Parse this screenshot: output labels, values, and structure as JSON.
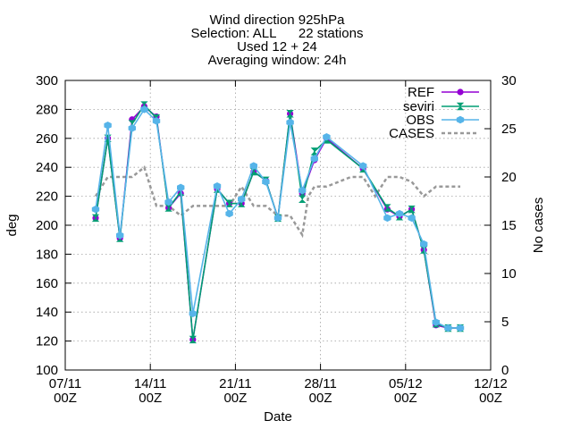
{
  "chart_data": {
    "type": "line",
    "title_lines": [
      "Wind direction 925hPa",
      "Selection: ALL      22 stations",
      "Used 12 + 24",
      "Averaging window: 24h"
    ],
    "xlabel": "Date",
    "ylabel": "deg",
    "y2label": "No cases",
    "xlim": [
      0,
      35
    ],
    "ylim": [
      100,
      300
    ],
    "y2lim": [
      0,
      30
    ],
    "x_ticks": [
      {
        "x": 0,
        "line1": "07/11",
        "line2": "00Z"
      },
      {
        "x": 7,
        "line1": "14/11",
        "line2": "00Z"
      },
      {
        "x": 14,
        "line1": "21/11",
        "line2": "00Z"
      },
      {
        "x": 21,
        "line1": "28/11",
        "line2": "00Z"
      },
      {
        "x": 28,
        "line1": "05/12",
        "line2": "00Z"
      },
      {
        "x": 35,
        "line1": "12/12",
        "line2": "00Z"
      }
    ],
    "y_ticks": [
      100,
      120,
      140,
      160,
      180,
      200,
      220,
      240,
      260,
      280,
      300
    ],
    "y2_ticks": [
      0,
      5,
      10,
      15,
      20,
      25,
      30
    ],
    "grid": true,
    "legend_position": "top-right",
    "series": [
      {
        "name": "REF",
        "color": "#9400d3",
        "style": "line-points",
        "x": [
          2.5,
          3.5,
          4.5,
          5.5,
          6.5,
          7.5,
          8.5,
          9.5,
          10.5,
          12.5,
          13.5,
          14.5,
          15.5,
          16.5,
          17.5,
          18.5,
          19.5,
          20.5,
          21.5,
          24.5,
          26.5,
          27.5,
          28.5,
          29.5,
          30.5,
          31.5,
          32.5
        ],
        "y": [
          205,
          260,
          191,
          273,
          282,
          275,
          212,
          222,
          121,
          225,
          215,
          215,
          237,
          231,
          205,
          277,
          222,
          245,
          260,
          239,
          211,
          206,
          211,
          183,
          131,
          129,
          129
        ]
      },
      {
        "name": "seviri",
        "color": "#009e73",
        "style": "line-points",
        "x": [
          2.5,
          3.5,
          4.5,
          5.5,
          6.5,
          7.5,
          8.5,
          9.5,
          10.5,
          12.5,
          13.5,
          14.5,
          15.5,
          16.5,
          17.5,
          18.5,
          19.5,
          20.5,
          21.5,
          24.5,
          26.5,
          27.5,
          28.5,
          29.5,
          30.5,
          31.5,
          32.5
        ],
        "y": [
          205,
          260,
          191,
          270,
          283,
          274,
          212,
          223,
          121,
          225,
          215,
          215,
          237,
          231,
          205,
          277,
          218,
          251,
          259,
          239,
          212,
          206,
          211,
          183,
          132,
          129,
          129
        ]
      },
      {
        "name": "OBS",
        "color": "#56b4e9",
        "style": "line-points",
        "x": [
          2.5,
          3.5,
          4.5,
          5.5,
          6.5,
          7.5,
          8.5,
          9.5,
          10.5,
          12.5,
          13.5,
          14.5,
          15.5,
          16.5,
          17.5,
          18.5,
          19.5,
          20.5,
          21.5,
          24.5,
          26.5,
          27.5,
          28.5,
          29.5,
          30.5,
          31.5,
          32.5
        ],
        "y": [
          211,
          269,
          193,
          267,
          280,
          272,
          216,
          226,
          139,
          227,
          208,
          218,
          241,
          230,
          205,
          271,
          224,
          246,
          261,
          241,
          205,
          208,
          205,
          187,
          133,
          129,
          129
        ]
      },
      {
        "name": "CASES",
        "color": "#999999",
        "style": "dashed",
        "axis": "y2",
        "x": [
          2.5,
          3.5,
          4.5,
          5.5,
          6.5,
          7.5,
          8.5,
          9.5,
          10.5,
          11.5,
          12.5,
          13.5,
          14.5,
          15.5,
          16.5,
          17.5,
          18.5,
          19.0,
          19.5,
          20.0,
          20.5,
          21.5,
          22.5,
          23.5,
          24.5,
          25.5,
          26.5,
          27.5,
          28.5,
          29.5,
          30.5,
          31.5,
          32.5
        ],
        "y": [
          18,
          20,
          20,
          20,
          21,
          17,
          17,
          16,
          17,
          17,
          17,
          17,
          19,
          17,
          17,
          16,
          16,
          15,
          14,
          18,
          19,
          19,
          19.5,
          20,
          20,
          18,
          20,
          20,
          19.5,
          18,
          19,
          19,
          19
        ]
      }
    ]
  }
}
